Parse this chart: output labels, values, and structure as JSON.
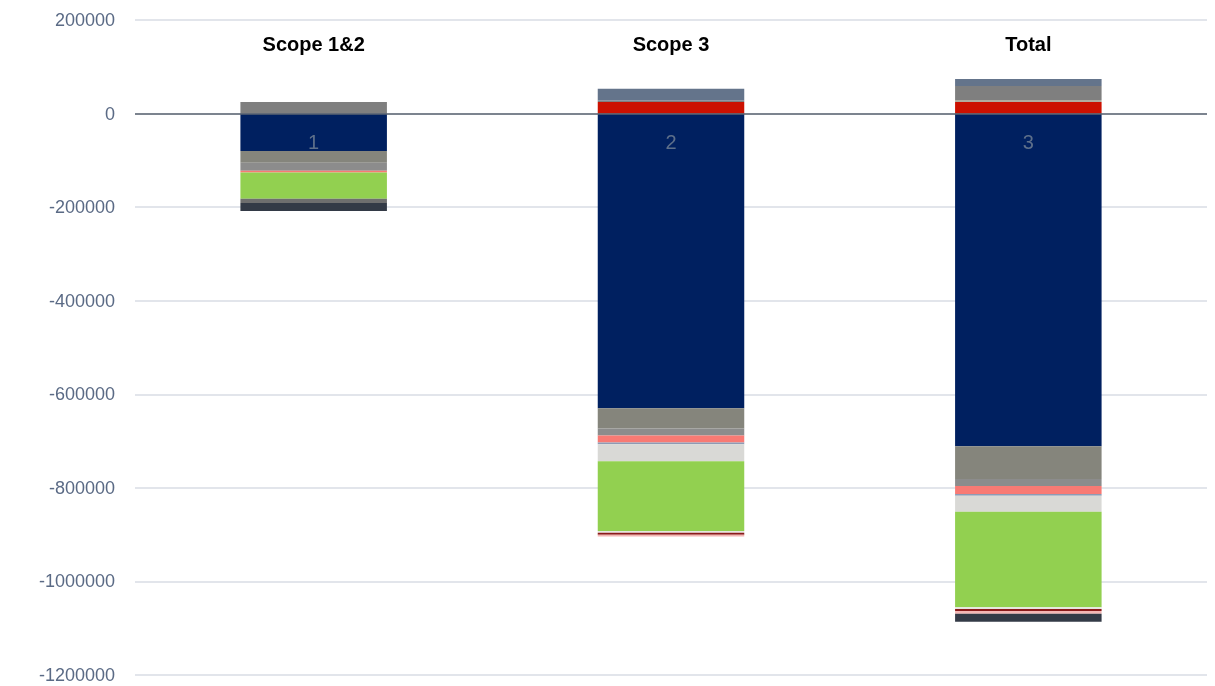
{
  "chart_data": {
    "type": "bar",
    "stacked": true,
    "categories": [
      "Scope 1&2",
      "Scope 3",
      "Total"
    ],
    "series": [
      {
        "color": "#002060",
        "values": [
          -80000,
          -630000,
          -711000
        ]
      },
      {
        "color": "#85857c",
        "values": [
          -25000,
          -43000,
          -70000
        ]
      },
      {
        "color": "#8c8c8c",
        "values": [
          -17000,
          -15000,
          -15000
        ]
      },
      {
        "color": "#f87a74",
        "values": [
          -4000,
          -15000,
          -17000
        ]
      },
      {
        "color": "#8e9bb5",
        "values": [
          null,
          -4000,
          -4000
        ]
      },
      {
        "color": "#d9d9d6",
        "values": [
          null,
          -36000,
          -34000
        ]
      },
      {
        "color": "#92d050",
        "values": [
          -56000,
          -149000,
          -204000
        ]
      },
      {
        "color": "#e6e6e0",
        "values": [
          null,
          -4000,
          -4000
        ]
      },
      {
        "color": "#8b1a1a",
        "values": [
          null,
          -4000,
          -4000
        ]
      },
      {
        "color": "#f4b6b4",
        "values": [
          null,
          -4000,
          -6000
        ]
      },
      {
        "color": "#6e6e6e",
        "values": [
          -9000,
          null,
          null
        ]
      },
      {
        "color": "#333a46",
        "values": [
          -17000,
          null,
          -17000
        ]
      },
      {
        "color": "#cc1100",
        "values": [
          null,
          25000,
          25000
        ]
      },
      {
        "color": "#b0ada0",
        "values": [
          null,
          null,
          4000
        ]
      },
      {
        "color": "#7f7f7f",
        "values": [
          25000,
          3000,
          30000
        ]
      },
      {
        "color": "#64748b",
        "values": [
          null,
          25000,
          15000
        ]
      }
    ],
    "ylim": [
      -1200000,
      200000
    ],
    "yticks": [
      -1200000,
      -1000000,
      -800000,
      -600000,
      -400000,
      -200000,
      0,
      200000
    ],
    "grid": "y",
    "ref_lines": [
      {
        "axis": "y",
        "value": 0,
        "color": "#5a6370"
      }
    ],
    "annotations": [
      "1",
      "2",
      "3"
    ]
  }
}
